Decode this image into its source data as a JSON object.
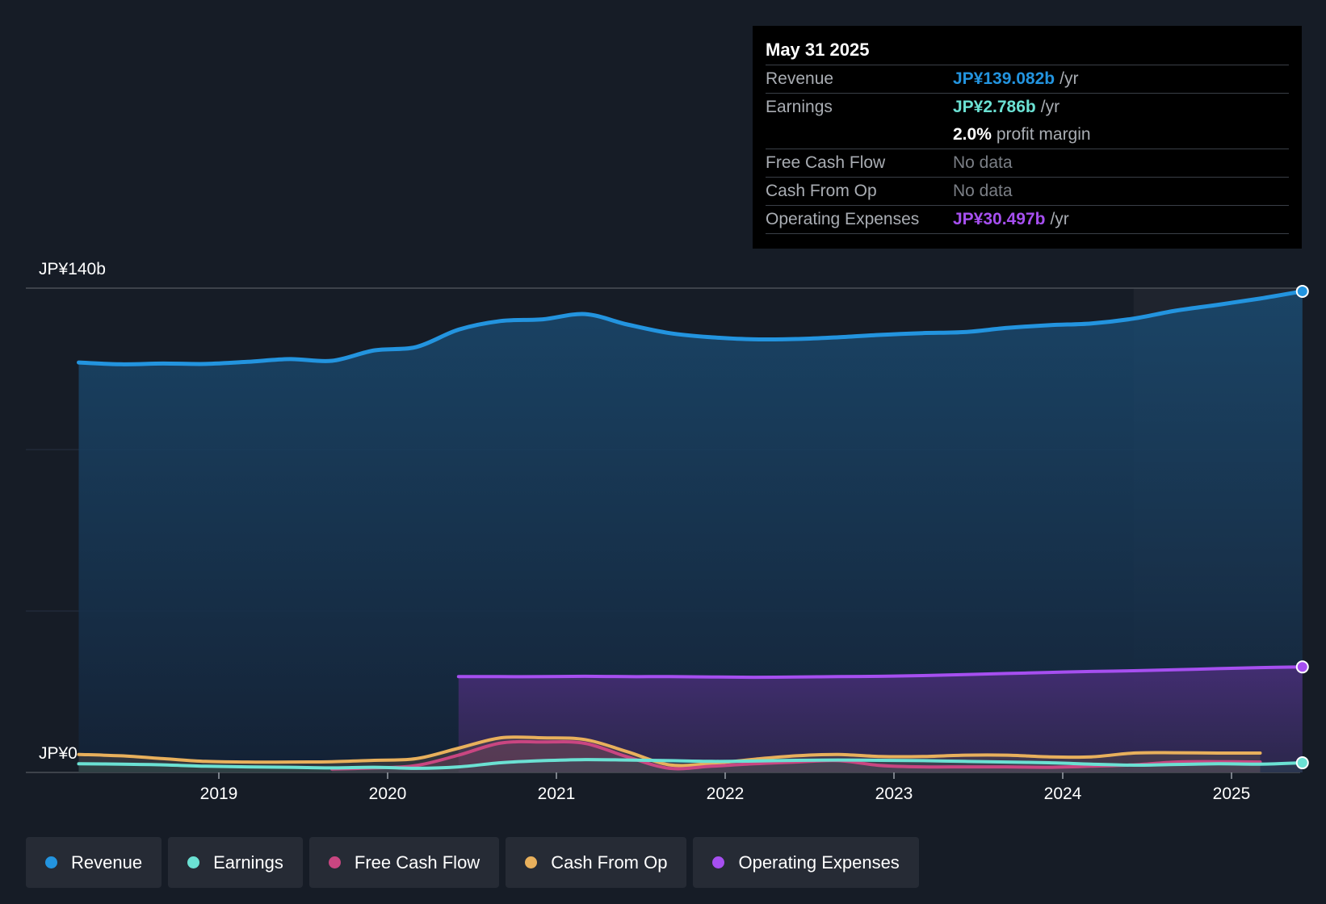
{
  "tooltip": {
    "date": "May 31 2025",
    "rows": [
      {
        "label": "Revenue",
        "value": "JP¥139.082b",
        "unit": "/yr",
        "color": "#2394df"
      },
      {
        "label": "Earnings",
        "value": "JP¥2.786b",
        "unit": "/yr",
        "color": "#6be1d3"
      },
      {
        "label": "",
        "value": "2.0%",
        "unit": "profit margin",
        "color": "#ffffff"
      },
      {
        "label": "Free Cash Flow",
        "value": "No data"
      },
      {
        "label": "Cash From Op",
        "value": "No data"
      },
      {
        "label": "Operating Expenses",
        "value": "JP¥30.497b",
        "unit": "/yr",
        "color": "#a64ff0"
      }
    ]
  },
  "legend": [
    {
      "label": "Revenue",
      "color": "#2394df"
    },
    {
      "label": "Earnings",
      "color": "#6be1d3"
    },
    {
      "label": "Free Cash Flow",
      "color": "#c94681"
    },
    {
      "label": "Cash From Op",
      "color": "#e8b05c"
    },
    {
      "label": "Operating Expenses",
      "color": "#a64ff0"
    }
  ],
  "chart_data": {
    "type": "area",
    "ylabels": {
      "top": "JP¥140b",
      "bottom": "JP¥0"
    },
    "ylim": [
      0,
      140
    ],
    "xlim": [
      2018.0,
      2025.42
    ],
    "xticks": [
      "2019",
      "2020",
      "2021",
      "2022",
      "2023",
      "2024",
      "2025"
    ],
    "grid": true,
    "highlight_from": 2024.42,
    "series": [
      {
        "name": "Revenue",
        "color": "#2394df",
        "points": [
          [
            2018.17,
            118.5
          ],
          [
            2018.42,
            118.0
          ],
          [
            2018.67,
            118.2
          ],
          [
            2018.92,
            118.1
          ],
          [
            2019.17,
            118.7
          ],
          [
            2019.42,
            119.5
          ],
          [
            2019.67,
            119.0
          ],
          [
            2019.92,
            122.0
          ],
          [
            2020.17,
            123.0
          ],
          [
            2020.42,
            128.0
          ],
          [
            2020.67,
            130.5
          ],
          [
            2020.92,
            131.0
          ],
          [
            2021.17,
            132.5
          ],
          [
            2021.42,
            129.5
          ],
          [
            2021.67,
            127.0
          ],
          [
            2021.92,
            125.8
          ],
          [
            2022.17,
            125.2
          ],
          [
            2022.42,
            125.3
          ],
          [
            2022.67,
            125.8
          ],
          [
            2022.92,
            126.5
          ],
          [
            2023.17,
            127.0
          ],
          [
            2023.42,
            127.3
          ],
          [
            2023.67,
            128.5
          ],
          [
            2023.92,
            129.3
          ],
          [
            2024.17,
            129.8
          ],
          [
            2024.42,
            131.2
          ],
          [
            2024.67,
            133.5
          ],
          [
            2024.92,
            135.2
          ],
          [
            2025.17,
            137.0
          ],
          [
            2025.42,
            139.08
          ]
        ]
      },
      {
        "name": "Earnings",
        "color": "#6be1d3",
        "points": [
          [
            2018.17,
            2.5
          ],
          [
            2018.42,
            2.4
          ],
          [
            2018.67,
            2.2
          ],
          [
            2018.92,
            1.8
          ],
          [
            2019.17,
            1.6
          ],
          [
            2019.42,
            1.5
          ],
          [
            2019.67,
            1.3
          ],
          [
            2019.92,
            1.5
          ],
          [
            2020.17,
            1.2
          ],
          [
            2020.42,
            1.6
          ],
          [
            2020.67,
            2.8
          ],
          [
            2020.92,
            3.4
          ],
          [
            2021.17,
            3.7
          ],
          [
            2021.42,
            3.6
          ],
          [
            2021.67,
            3.4
          ],
          [
            2021.92,
            3.2
          ],
          [
            2022.17,
            3.3
          ],
          [
            2022.42,
            3.5
          ],
          [
            2022.67,
            3.6
          ],
          [
            2022.92,
            3.5
          ],
          [
            2023.17,
            3.4
          ],
          [
            2023.42,
            3.2
          ],
          [
            2023.67,
            3.0
          ],
          [
            2023.92,
            2.8
          ],
          [
            2024.17,
            2.4
          ],
          [
            2024.42,
            2.1
          ],
          [
            2024.67,
            2.3
          ],
          [
            2024.92,
            2.5
          ],
          [
            2025.17,
            2.4
          ],
          [
            2025.42,
            2.79
          ]
        ]
      },
      {
        "name": "Free Cash Flow",
        "color": "#c94681",
        "points": [
          [
            2019.67,
            1.0
          ],
          [
            2019.92,
            1.3
          ],
          [
            2020.17,
            2.0
          ],
          [
            2020.42,
            5.0
          ],
          [
            2020.67,
            8.5
          ],
          [
            2020.92,
            8.8
          ],
          [
            2021.17,
            8.4
          ],
          [
            2021.42,
            4.5
          ],
          [
            2021.67,
            1.2
          ],
          [
            2021.92,
            1.8
          ],
          [
            2022.17,
            2.5
          ],
          [
            2022.42,
            3.0
          ],
          [
            2022.67,
            3.4
          ],
          [
            2022.92,
            2.0
          ],
          [
            2023.17,
            1.6
          ],
          [
            2023.42,
            1.6
          ],
          [
            2023.67,
            1.6
          ],
          [
            2023.92,
            1.5
          ],
          [
            2024.17,
            1.8
          ],
          [
            2024.42,
            2.2
          ],
          [
            2024.67,
            3.0
          ],
          [
            2024.92,
            3.1
          ],
          [
            2025.17,
            3.0
          ]
        ]
      },
      {
        "name": "Cash From Op",
        "color": "#e8b05c",
        "points": [
          [
            2018.17,
            5.2
          ],
          [
            2018.42,
            4.8
          ],
          [
            2018.67,
            4.0
          ],
          [
            2018.92,
            3.2
          ],
          [
            2019.17,
            3.0
          ],
          [
            2019.42,
            3.0
          ],
          [
            2019.67,
            3.1
          ],
          [
            2019.92,
            3.5
          ],
          [
            2020.17,
            4.0
          ],
          [
            2020.42,
            7.0
          ],
          [
            2020.67,
            10.0
          ],
          [
            2020.92,
            10.0
          ],
          [
            2021.17,
            9.5
          ],
          [
            2021.42,
            6.0
          ],
          [
            2021.67,
            2.2
          ],
          [
            2021.92,
            2.6
          ],
          [
            2022.17,
            3.8
          ],
          [
            2022.42,
            4.8
          ],
          [
            2022.67,
            5.2
          ],
          [
            2022.92,
            4.6
          ],
          [
            2023.17,
            4.6
          ],
          [
            2023.42,
            5.0
          ],
          [
            2023.67,
            5.0
          ],
          [
            2023.92,
            4.5
          ],
          [
            2024.17,
            4.5
          ],
          [
            2024.42,
            5.6
          ],
          [
            2024.67,
            5.7
          ],
          [
            2024.92,
            5.6
          ],
          [
            2025.17,
            5.6
          ]
        ]
      },
      {
        "name": "Operating Expenses",
        "color": "#a64ff0",
        "points": [
          [
            2020.42,
            27.7
          ],
          [
            2020.67,
            27.7
          ],
          [
            2020.92,
            27.7
          ],
          [
            2021.17,
            27.8
          ],
          [
            2021.42,
            27.7
          ],
          [
            2021.67,
            27.7
          ],
          [
            2021.92,
            27.6
          ],
          [
            2022.17,
            27.5
          ],
          [
            2022.42,
            27.6
          ],
          [
            2022.67,
            27.7
          ],
          [
            2022.92,
            27.8
          ],
          [
            2023.17,
            28.0
          ],
          [
            2023.42,
            28.3
          ],
          [
            2023.67,
            28.6
          ],
          [
            2023.92,
            28.9
          ],
          [
            2024.17,
            29.2
          ],
          [
            2024.42,
            29.4
          ],
          [
            2024.67,
            29.7
          ],
          [
            2024.92,
            30.0
          ],
          [
            2025.17,
            30.3
          ],
          [
            2025.42,
            30.5
          ]
        ]
      }
    ]
  }
}
